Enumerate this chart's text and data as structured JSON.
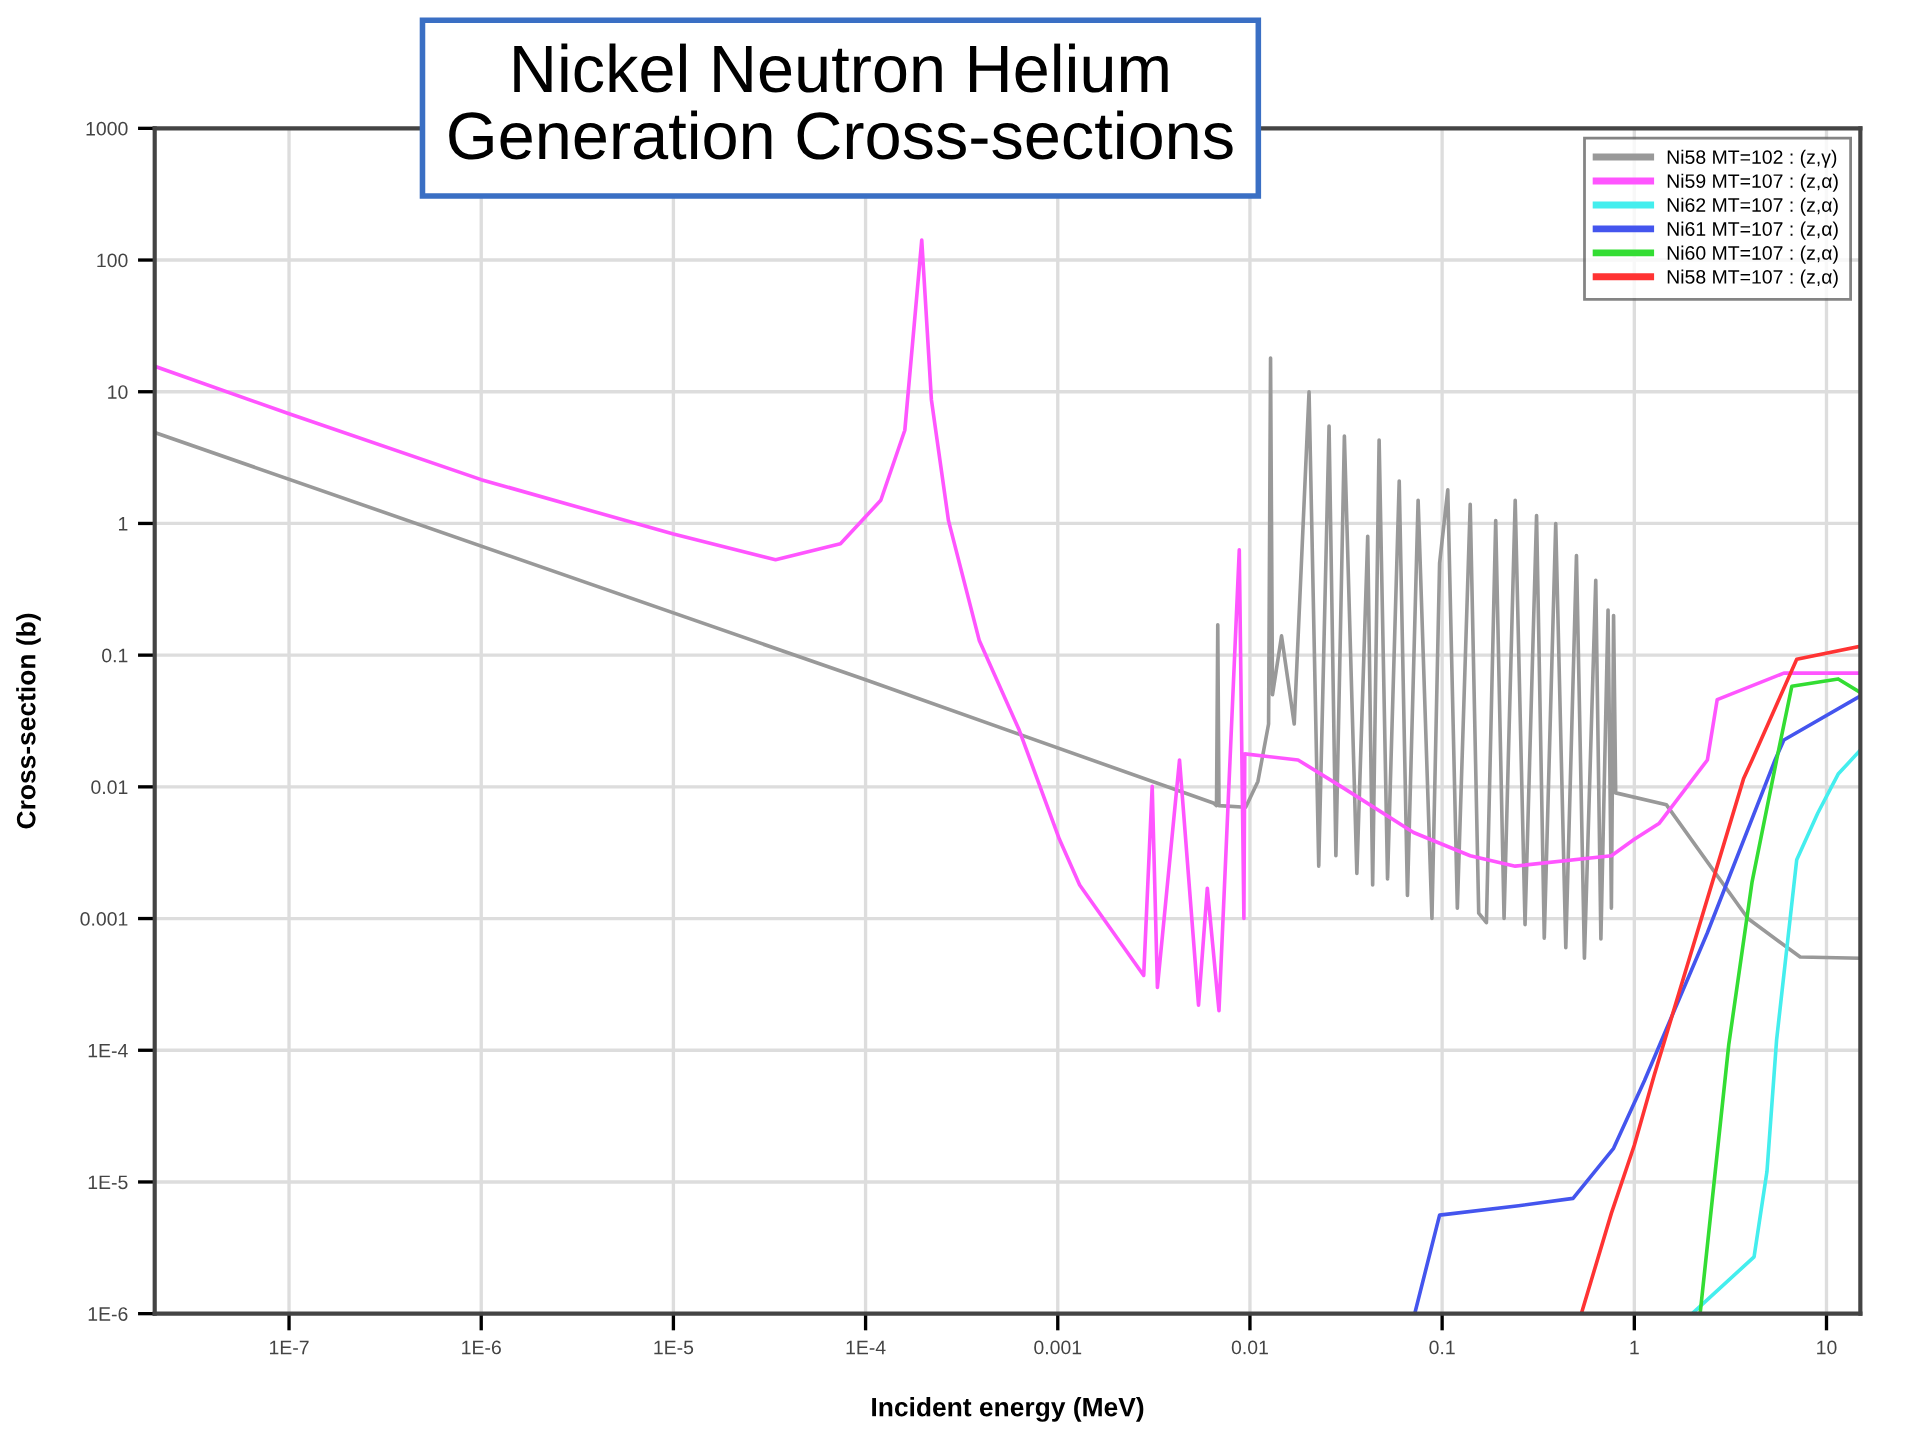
{
  "chart_data": {
    "type": "line",
    "title": "Nickel Neutron Helium\nGeneration Cross-sections",
    "xlabel": "Incident energy (MeV)",
    "ylabel": "Cross-section (b)",
    "log": "xy",
    "xlim": [
      2e-08,
      15
    ],
    "ylim": [
      1e-06,
      1000
    ],
    "xticks": [
      {
        "value": 1e-07,
        "label": "1E-7"
      },
      {
        "value": 1e-06,
        "label": "1E-6"
      },
      {
        "value": 1e-05,
        "label": "1E-5"
      },
      {
        "value": 0.0001,
        "label": "1E-4"
      },
      0.001,
      0.01,
      0.1,
      1,
      10
    ],
    "yticks": [
      {
        "value": 1e-06,
        "label": "1E-6"
      },
      {
        "value": 1e-05,
        "label": "1E-5"
      },
      {
        "value": 0.0001,
        "label": "1E-4"
      },
      0.001,
      0.01,
      0.1,
      1,
      10,
      100,
      1000
    ],
    "grid": true,
    "legend": "top right",
    "marker": "none",
    "line_style": "solid",
    "series": [
      {
        "name": "Ni58 MT=102 : (z,γ)",
        "color": "#999999",
        "x": [
          2e-08,
          0.0001,
          0.0065,
          0.0067,
          0.0068,
          0.0069,
          0.0095,
          0.011,
          0.0125,
          0.0128,
          0.0131,
          0.0146,
          0.017,
          0.0203,
          0.0228,
          0.0258,
          0.028,
          0.031,
          0.036,
          0.041,
          0.0435,
          0.047,
          0.052,
          0.0598,
          0.066,
          0.075,
          0.0885,
          0.097,
          0.107,
          0.12,
          0.14,
          0.155,
          0.17,
          0.19,
          0.21,
          0.24,
          0.27,
          0.31,
          0.34,
          0.39,
          0.44,
          0.5,
          0.55,
          0.63,
          0.67,
          0.73,
          0.76,
          0.78,
          0.8,
          1.47,
          3.9,
          7.3,
          15
        ],
        "values": [
          4.9,
          0.065,
          0.0075,
          0.0072,
          0.17,
          0.0072,
          0.007,
          0.011,
          0.03,
          18,
          0.05,
          0.14,
          0.03,
          10,
          0.0025,
          5.5,
          0.003,
          4.6,
          0.0022,
          0.8,
          0.0018,
          4.3,
          0.002,
          2.1,
          0.0015,
          1.5,
          0.001,
          0.5,
          1.8,
          0.0012,
          1.4,
          0.0011,
          0.00093,
          1.05,
          0.001,
          1.5,
          0.0009,
          1.15,
          0.00071,
          1.0,
          0.0006,
          0.57,
          0.0005,
          0.37,
          0.0007,
          0.22,
          0.0012,
          0.2,
          0.009,
          0.0073,
          0.001,
          0.00051,
          0.0005
        ]
      },
      {
        "name": "Ni59 MT=107 : (z,α)",
        "color": "#ff55ff",
        "x": [
          2e-08,
          1e-07,
          1e-06,
          1e-05,
          3.4e-05,
          7.4e-05,
          0.00012,
          0.00016,
          0.000196,
          0.00022,
          0.00027,
          0.00039,
          0.00063,
          0.00102,
          0.0013,
          0.0028,
          0.0031,
          0.0033,
          0.0043,
          0.0054,
          0.006,
          0.0069,
          0.0088,
          0.0093,
          0.0094,
          0.0178,
          0.03,
          0.071,
          0.14,
          0.24,
          0.76,
          1.0,
          1.35,
          2.4,
          2.7,
          6.0,
          15
        ],
        "values": [
          15.6,
          6.8,
          2.15,
          0.83,
          0.53,
          0.7,
          1.5,
          5.1,
          142,
          8.7,
          1.05,
          0.13,
          0.027,
          0.004,
          0.0018,
          0.00037,
          0.0101,
          0.0003,
          0.016,
          0.00022,
          0.0017,
          0.0002,
          0.63,
          0.001,
          0.0178,
          0.016,
          0.01,
          0.0045,
          0.003,
          0.0025,
          0.003,
          0.004,
          0.0053,
          0.016,
          0.046,
          0.073,
          0.073
        ]
      },
      {
        "name": "Ni62 MT=107 : (z,α)",
        "color": "#44eeee",
        "x": [
          2.0,
          4.2,
          4.9,
          5.5,
          7.0,
          9.0,
          11.5,
          15
        ],
        "values": [
          1e-06,
          2.7e-06,
          1.2e-05,
          0.00012,
          0.0028,
          0.0063,
          0.0125,
          0.019
        ]
      },
      {
        "name": "Ni61 MT=107 : (z,α)",
        "color": "#4455ee",
        "x": [
          0.072,
          0.097,
          0.25,
          0.48,
          0.78,
          1.13,
          2.4,
          5.4,
          6.0,
          15
        ],
        "values": [
          1e-06,
          5.6e-06,
          6.6e-06,
          7.5e-06,
          1.8e-05,
          5.9e-05,
          0.00078,
          0.016,
          0.0227,
          0.049
        ]
      },
      {
        "name": "Ni60 MT=107 : (z,α)",
        "color": "#33dd33",
        "x": [
          2.2,
          3.1,
          4.1,
          5.5,
          6.6,
          11.5,
          15
        ],
        "values": [
          1e-06,
          0.00011,
          0.0019,
          0.016,
          0.058,
          0.066,
          0.052
        ]
      },
      {
        "name": "Ni58 MT=107 : (z,α)",
        "color": "#ff3333",
        "x": [
          0.53,
          0.76,
          1.0,
          1.27,
          3.7,
          4.1,
          7.0,
          15
        ],
        "values": [
          1e-06,
          5.8e-06,
          1.9e-05,
          6.5e-05,
          0.0115,
          0.016,
          0.093,
          0.117
        ]
      }
    ]
  }
}
